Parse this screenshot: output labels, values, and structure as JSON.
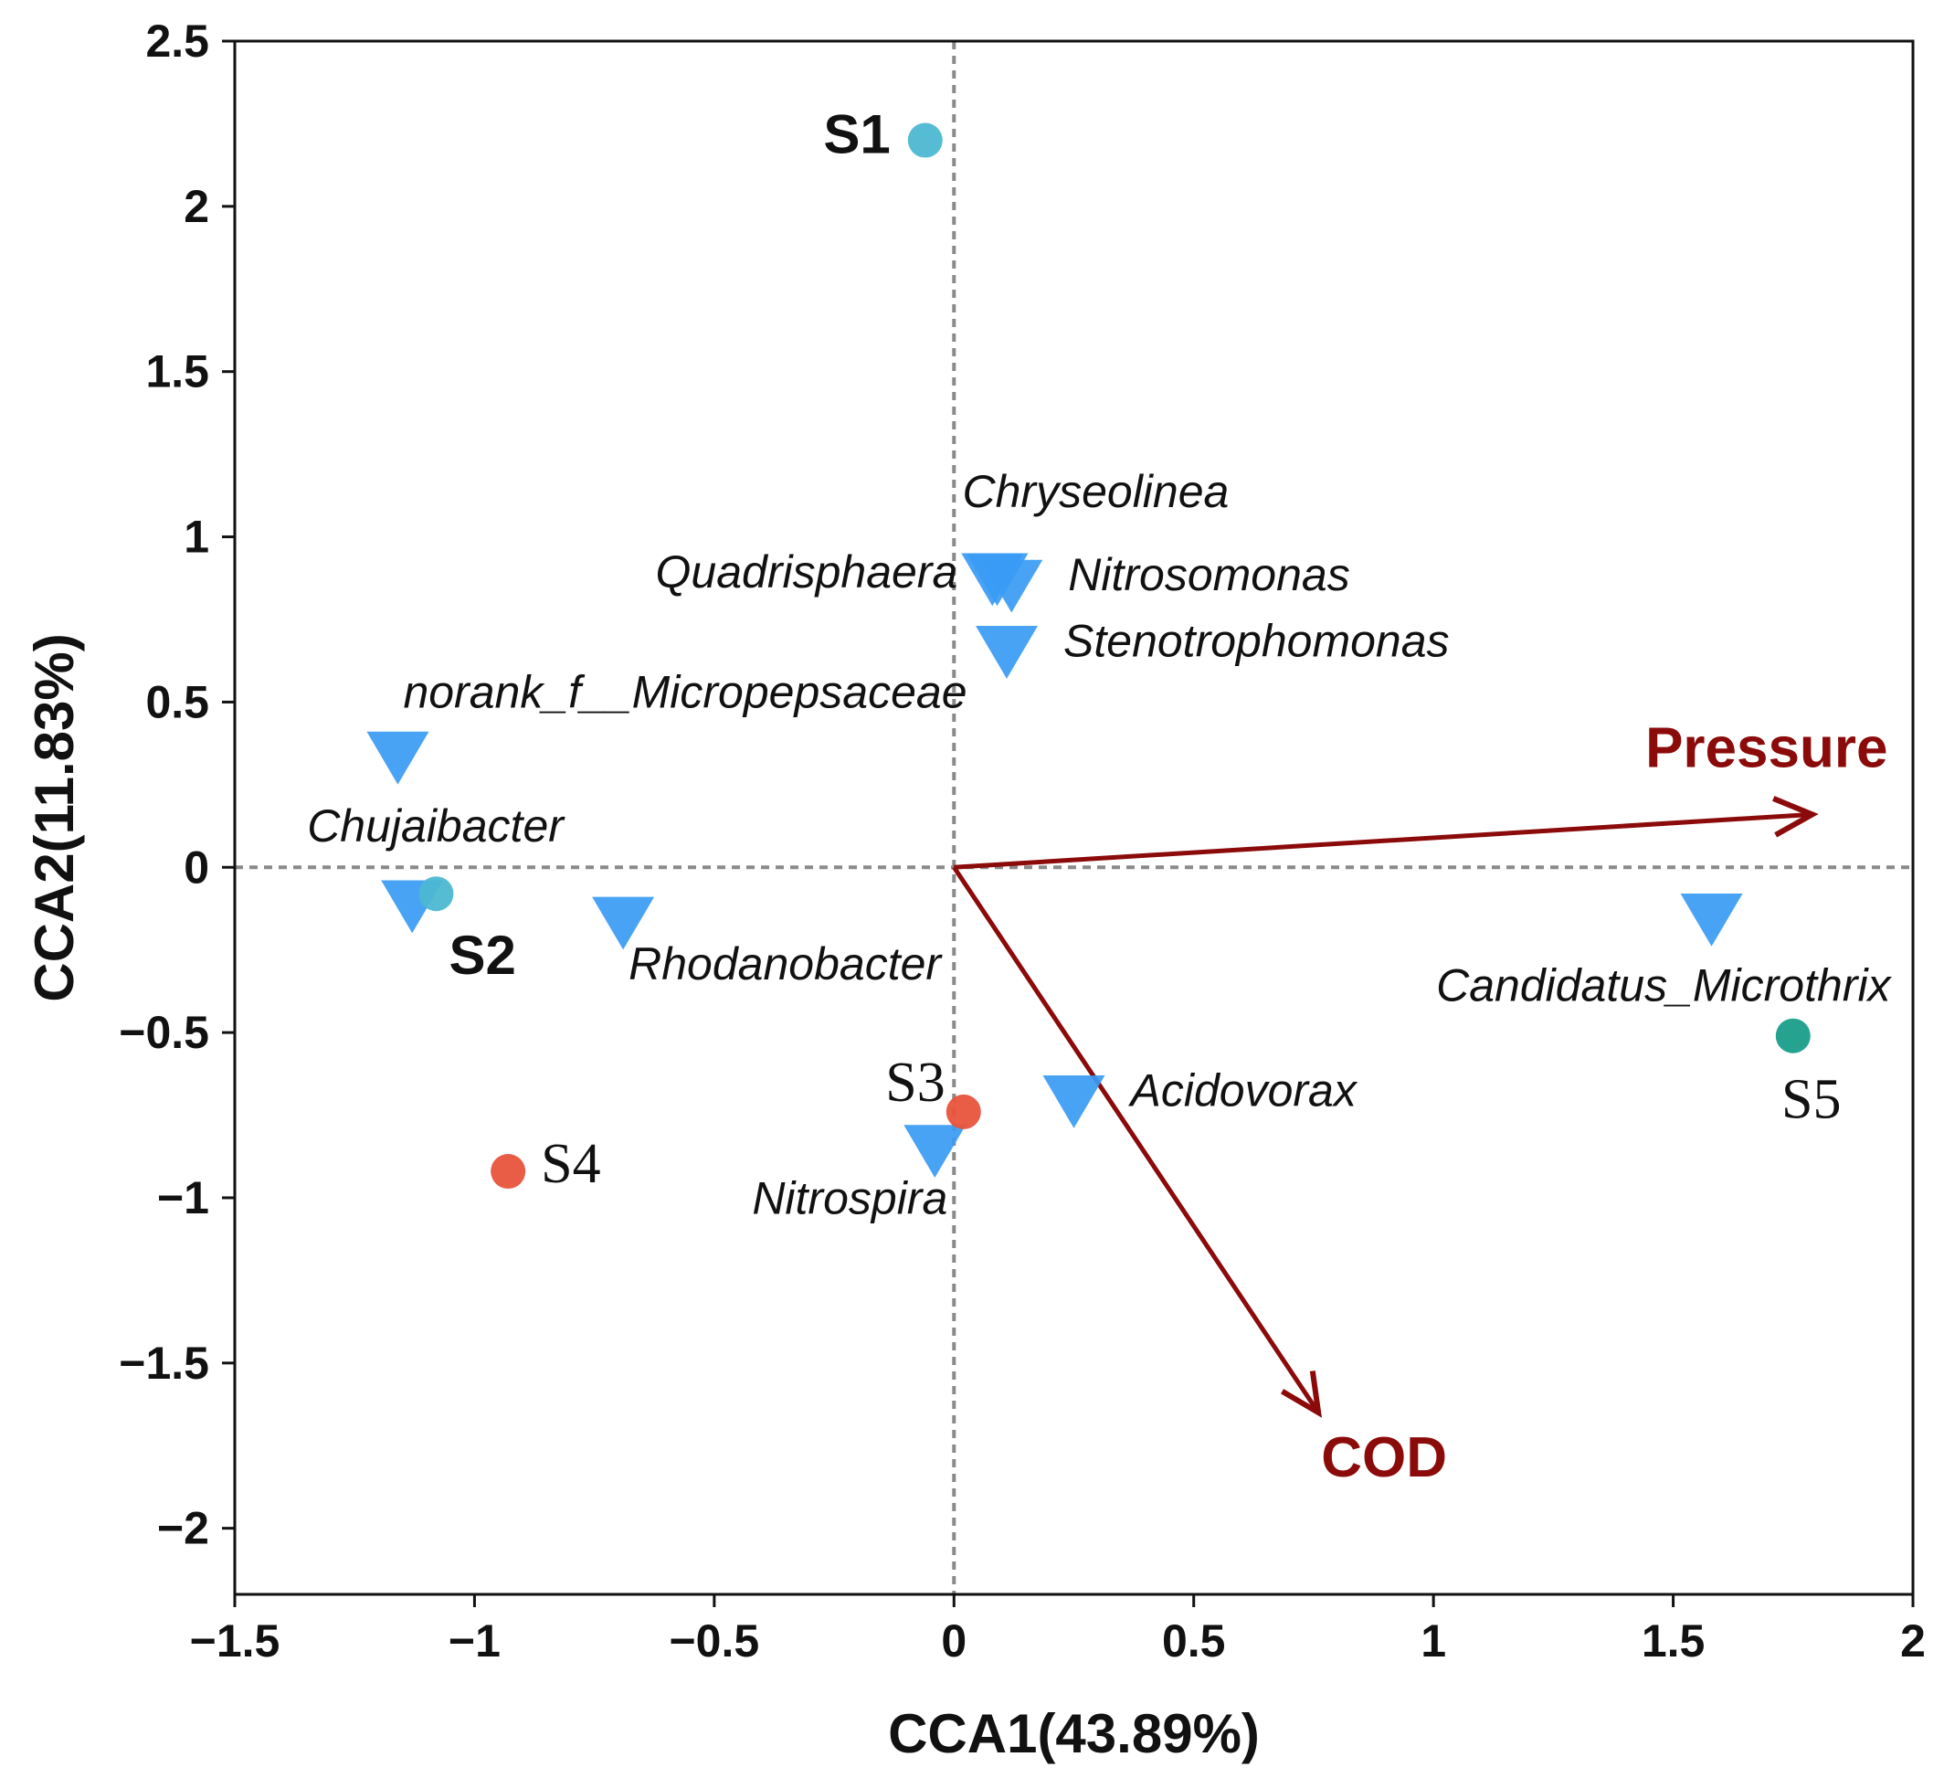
{
  "chart_data": {
    "type": "scatter",
    "subtype": "CCA biplot",
    "xlabel": "CCA1(43.89%)",
    "ylabel": "CCA2(11.83%)",
    "xlim": [
      -1.5,
      2
    ],
    "ylim": [
      -2.2,
      2.5
    ],
    "xticks": [
      -1.5,
      -1,
      -0.5,
      0,
      0.5,
      1,
      1.5,
      2
    ],
    "xtick_labels": [
      "−1.5",
      "−1",
      "−0.5",
      "0",
      "0.5",
      "1",
      "1.5",
      "2"
    ],
    "yticks": [
      -2,
      -1.5,
      -1,
      -0.5,
      0,
      0.5,
      1,
      1.5,
      2,
      2.5
    ],
    "ytick_labels": [
      "−2",
      "−1.5",
      "−1",
      "−0.5",
      "0",
      "0.5",
      "1",
      "1.5",
      "2",
      "2.5"
    ],
    "reference_lines": {
      "x": 0,
      "y": 0,
      "style": "dashed"
    },
    "sites": [
      {
        "name": "S1",
        "x": -0.06,
        "y": 2.2,
        "color": "#4DB8D2",
        "label_style": "bold-sans",
        "label_anchor": "left"
      },
      {
        "name": "S2",
        "x": -1.08,
        "y": -0.08,
        "color": "#4DB8D2",
        "label_style": "bold-sans",
        "label_anchor": "below-right"
      },
      {
        "name": "S3",
        "x": 0.02,
        "y": -0.74,
        "color": "#E8533C",
        "label_style": "serif",
        "label_anchor": "upper-left"
      },
      {
        "name": "S4",
        "x": -0.93,
        "y": -0.92,
        "color": "#E8533C",
        "label_style": "serif",
        "label_anchor": "right"
      },
      {
        "name": "S5",
        "x": 1.75,
        "y": -0.51,
        "color": "#1A9E8A",
        "label_style": "serif",
        "label_anchor": "below"
      }
    ],
    "species": [
      {
        "name": "Chryseolinea",
        "x": 0.09,
        "y": 0.88,
        "label_anchor": "above"
      },
      {
        "name": "Quadrisphaera",
        "x": 0.08,
        "y": 0.88,
        "label_anchor": "left"
      },
      {
        "name": "Nitrosomonas",
        "x": 0.12,
        "y": 0.86,
        "label_anchor": "right"
      },
      {
        "name": "Stenotrophomonas",
        "x": 0.11,
        "y": 0.66,
        "label_anchor": "right"
      },
      {
        "name": "norank_f__Micropepsaceae",
        "x": -1.16,
        "y": 0.34,
        "label_anchor": "upper-right"
      },
      {
        "name": "Chujaibacter",
        "x": -1.13,
        "y": -0.11,
        "label_anchor": "above"
      },
      {
        "name": "Rhodanobacter",
        "x": -0.69,
        "y": -0.16,
        "label_anchor": "below-right"
      },
      {
        "name": "Candidatus_Microthrix",
        "x": 1.58,
        "y": -0.15,
        "label_anchor": "below"
      },
      {
        "name": "Acidovorax",
        "x": 0.25,
        "y": -0.7,
        "label_anchor": "right"
      },
      {
        "name": "Nitrospira",
        "x": -0.04,
        "y": -0.85,
        "label_anchor": "below-left"
      }
    ],
    "species_color": "#3A9BF4",
    "vectors": [
      {
        "name": "Pressure",
        "x": 1.79,
        "y": 0.16,
        "label_anchor": "above"
      },
      {
        "name": "COD",
        "x": 0.76,
        "y": -1.65,
        "label_anchor": "below"
      }
    ],
    "vector_color": "#8B0A0A"
  }
}
